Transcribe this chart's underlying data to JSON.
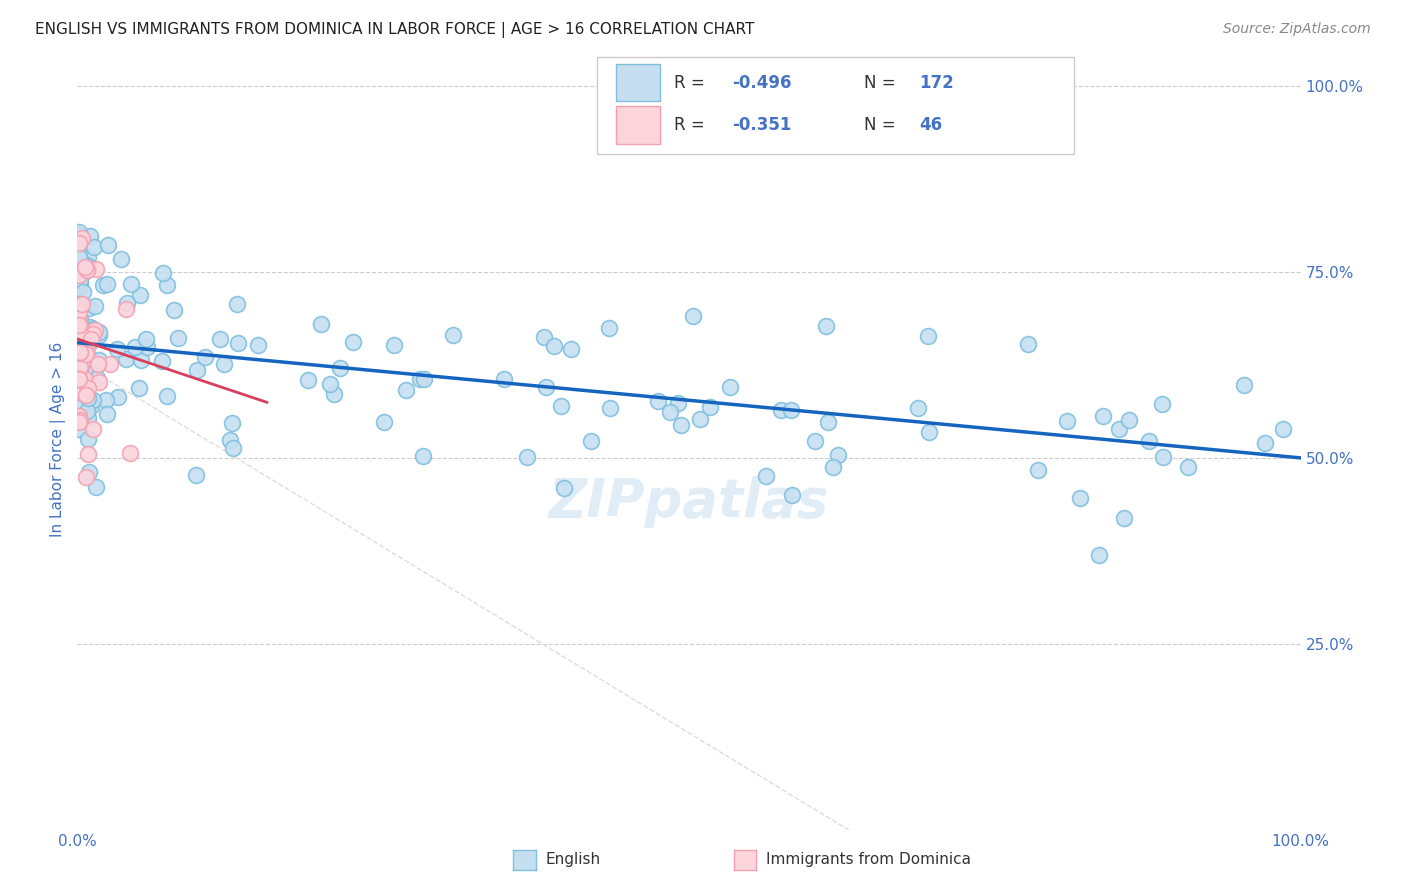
{
  "title": "ENGLISH VS IMMIGRANTS FROM DOMINICA IN LABOR FORCE | AGE > 16 CORRELATION CHART",
  "source_text": "Source: ZipAtlas.com",
  "ylabel": "In Labor Force | Age > 16",
  "xlim": [
    0.0,
    1.0
  ],
  "ylim": [
    0.0,
    1.05
  ],
  "y_tick_positions": [
    0.25,
    0.5,
    0.75,
    1.0
  ],
  "blue_color": "#7fbfdf",
  "pink_color": "#f4a0b0",
  "blue_fill": "#c5dff0",
  "pink_fill": "#fcd5dc",
  "trend_blue": "#1565c0",
  "trend_pink": "#d94060",
  "R_blue": -0.496,
  "N_blue": 172,
  "R_pink": -0.351,
  "N_pink": 46,
  "watermark": "ZIPpatlas",
  "title_color": "#222222",
  "axis_label_color": "#4472c4",
  "tick_color": "#4472c4",
  "title_fontsize": 11,
  "label_fontsize": 11,
  "blue_intercept": 0.655,
  "blue_slope": -0.155,
  "pink_intercept": 0.66,
  "pink_slope": -0.55
}
